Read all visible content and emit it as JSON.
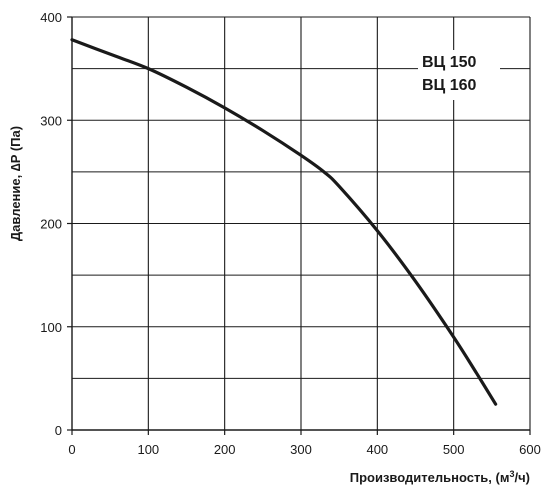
{
  "chart_data": {
    "type": "line",
    "title": "",
    "xlabel": "Производительность, (м³/ч)",
    "xlabel_parts": {
      "prefix": "Производительность, (м",
      "sup": "3",
      "suffix": "/ч)"
    },
    "ylabel": "Давление, ∆P (Па)",
    "xlim": [
      0,
      600
    ],
    "ylim": [
      0,
      400
    ],
    "x_ticks": [
      0,
      100,
      200,
      300,
      400,
      500,
      600
    ],
    "y_ticks": [
      0,
      100,
      200,
      300,
      400
    ],
    "x_gridlines": [
      100,
      200,
      300,
      400,
      500,
      600
    ],
    "y_gridlines": [
      50,
      100,
      150,
      200,
      250,
      300,
      350,
      400
    ],
    "grid": true,
    "legend_position": "top-right",
    "series": [
      {
        "name_lines": [
          "ВЦ 150",
          "ВЦ 160"
        ],
        "color": "#1a1a1a",
        "x": [
          0,
          50,
          100,
          150,
          200,
          250,
          300,
          330,
          350,
          400,
          450,
          500,
          530,
          555
        ],
        "y": [
          378,
          364,
          350,
          332,
          312,
          290,
          266,
          250,
          236,
          193,
          144,
          90,
          55,
          25
        ]
      }
    ]
  }
}
